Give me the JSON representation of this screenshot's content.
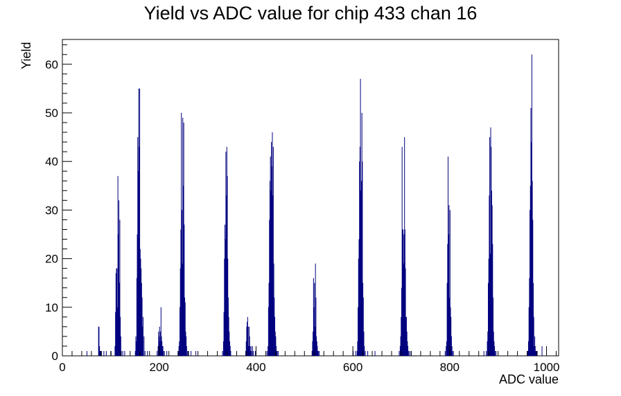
{
  "chart_data": {
    "type": "bar",
    "title": "Yield vs ADC value for chip 433 chan 16",
    "xlabel": "ADC value",
    "ylabel": "Yield",
    "xlim": [
      0,
      1025
    ],
    "ylim": [
      0,
      65.1
    ],
    "x_ticks": [
      0,
      200,
      400,
      600,
      800,
      1000
    ],
    "y_ticks": [
      0,
      10,
      20,
      30,
      40,
      50,
      60
    ],
    "grid": false,
    "legend": "none",
    "line_color": "#00007f",
    "series": [
      {
        "x": [
          50,
          74,
          75,
          76,
          77,
          78,
          80,
          85,
          90,
          100,
          108,
          109,
          110,
          111,
          112,
          113,
          114,
          115,
          116,
          117,
          118,
          119,
          120,
          121,
          124,
          128,
          150,
          151,
          152,
          153,
          154,
          155,
          156,
          157,
          158,
          159,
          160,
          161,
          162,
          163,
          164,
          165,
          166,
          168,
          170,
          175,
          195,
          197,
          198,
          199,
          200,
          201,
          202,
          203,
          204,
          205,
          206,
          207,
          208,
          210,
          215,
          238,
          240,
          241,
          242,
          243,
          244,
          245,
          246,
          247,
          248,
          249,
          250,
          251,
          252,
          253,
          254,
          255,
          256,
          258,
          260,
          265,
          275,
          330,
          332,
          333,
          334,
          335,
          336,
          337,
          338,
          339,
          340,
          341,
          342,
          343,
          344,
          345,
          346,
          347,
          378,
          379,
          380,
          381,
          382,
          383,
          384,
          385,
          386,
          387,
          388,
          389,
          390,
          392,
          394,
          398,
          422,
          424,
          425,
          426,
          427,
          428,
          429,
          430,
          431,
          432,
          433,
          434,
          435,
          436,
          437,
          438,
          439,
          440,
          441,
          442,
          443,
          445,
          515,
          516,
          517,
          518,
          519,
          520,
          521,
          522,
          523,
          524,
          525,
          526,
          527,
          528,
          530,
          600,
          605,
          608,
          609,
          610,
          611,
          612,
          613,
          614,
          615,
          616,
          617,
          618,
          619,
          620,
          621,
          622,
          623,
          625,
          630,
          645,
          695,
          697,
          698,
          699,
          700,
          701,
          702,
          703,
          704,
          705,
          706,
          707,
          708,
          709,
          710,
          711,
          712,
          713,
          714,
          716,
          720,
          790,
          792,
          793,
          794,
          795,
          796,
          797,
          798,
          799,
          800,
          801,
          802,
          803,
          804,
          805,
          807,
          870,
          875,
          877,
          878,
          879,
          880,
          881,
          882,
          883,
          884,
          885,
          886,
          887,
          888,
          889,
          890,
          891,
          892,
          893,
          895,
          960,
          961,
          962,
          963,
          964,
          965,
          966,
          967,
          968,
          969,
          970,
          971,
          972,
          973,
          974,
          975,
          976,
          977,
          978,
          980,
          990
        ],
        "y": [
          1,
          6,
          6,
          2,
          1,
          1,
          1,
          1,
          1,
          1,
          2,
          9,
          17,
          18,
          18,
          10,
          37,
          25,
          32,
          15,
          28,
          8,
          4,
          1,
          1,
          1,
          1,
          4,
          3,
          16,
          25,
          45,
          38,
          55,
          43,
          55,
          22,
          20,
          18,
          15,
          12,
          6,
          8,
          4,
          1,
          1,
          1,
          2,
          5,
          4,
          6,
          3,
          5,
          10,
          4,
          3,
          2,
          2,
          1,
          1,
          1,
          1,
          2,
          3,
          10,
          18,
          26,
          50,
          30,
          19,
          49,
          35,
          48,
          27,
          12,
          11,
          5,
          4,
          2,
          1,
          1,
          1,
          1,
          1,
          3,
          9,
          20,
          27,
          24,
          42,
          33,
          43,
          37,
          20,
          12,
          8,
          5,
          3,
          2,
          1,
          1,
          3,
          6,
          7,
          8,
          6,
          2,
          6,
          4,
          2,
          1,
          2,
          1,
          2,
          1,
          1,
          1,
          2,
          10,
          15,
          28,
          36,
          41,
          34,
          44,
          39,
          46,
          33,
          43,
          19,
          12,
          8,
          5,
          4,
          2,
          1,
          1,
          1,
          1,
          3,
          5,
          16,
          10,
          15,
          6,
          19,
          12,
          4,
          3,
          2,
          1,
          1,
          1,
          1,
          1,
          1,
          3,
          10,
          20,
          24,
          40,
          43,
          57,
          34,
          36,
          50,
          40,
          15,
          12,
          5,
          2,
          1,
          1,
          1,
          1,
          2,
          4,
          8,
          14,
          43,
          26,
          26,
          19,
          25,
          45,
          26,
          18,
          8,
          8,
          5,
          3,
          2,
          1,
          1,
          1,
          1,
          2,
          3,
          15,
          23,
          41,
          25,
          31,
          12,
          30,
          10,
          8,
          4,
          2,
          1,
          1,
          1,
          1,
          3,
          5,
          15,
          20,
          33,
          45,
          21,
          47,
          43,
          34,
          31,
          23,
          12,
          5,
          3,
          2,
          1,
          1,
          1,
          1,
          3,
          10,
          16,
          30,
          35,
          51,
          44,
          62,
          36,
          28,
          15,
          8,
          2,
          4,
          2,
          1,
          1,
          1,
          2
        ]
      }
    ]
  }
}
